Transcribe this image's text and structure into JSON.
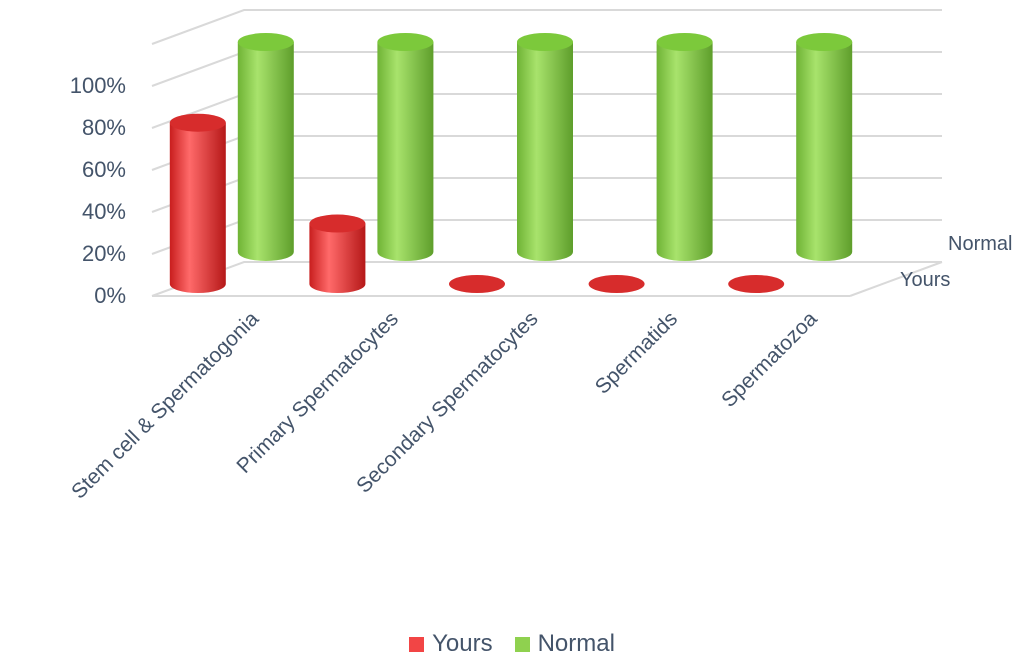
{
  "chart_data": {
    "type": "bar",
    "subtype": "3d-cylinder",
    "categories": [
      "Stem cell & Spermatogonia",
      "Primary Spermatocytes",
      "Secondary Spermatocytes",
      "Spermatids",
      "Spermatozoa"
    ],
    "series": [
      {
        "name": "Yours",
        "values": [
          80,
          30,
          0,
          0,
          0
        ],
        "color": "#f24545"
      },
      {
        "name": "Normal",
        "values": [
          100,
          100,
          100,
          100,
          100
        ],
        "color": "#8fd14f"
      }
    ],
    "yticks": [
      "0%",
      "20%",
      "40%",
      "60%",
      "80%",
      "100%"
    ],
    "ylim": [
      0,
      100
    ],
    "depth_labels": [
      "Normal",
      "Yours"
    ],
    "grid": true,
    "legend_position": "bottom"
  },
  "legend": {
    "yours": "Yours",
    "normal": "Normal"
  },
  "colors": {
    "yours": "#f24545",
    "normal": "#8fd14f",
    "grid": "#d9d9d9",
    "text": "#44546a"
  }
}
